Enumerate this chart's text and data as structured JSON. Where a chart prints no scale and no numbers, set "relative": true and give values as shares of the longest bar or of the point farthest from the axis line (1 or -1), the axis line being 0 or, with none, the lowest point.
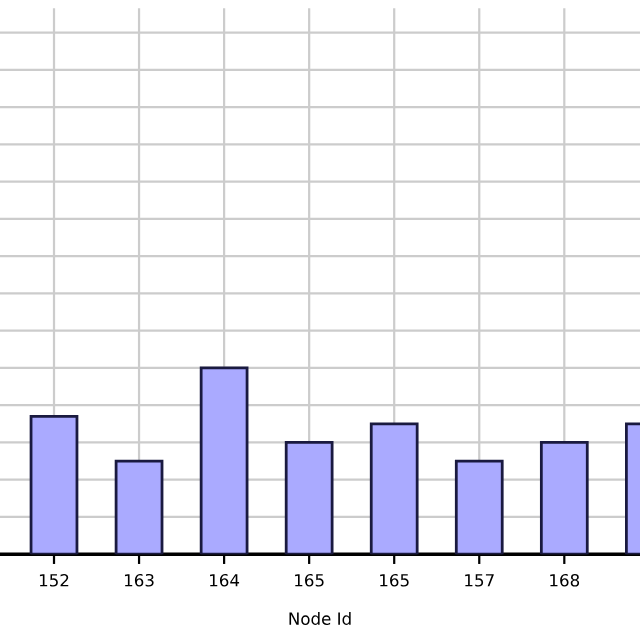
{
  "chart_data": {
    "type": "bar",
    "xlabel": "Node Id",
    "categories": [
      "152",
      "163",
      "164",
      "165",
      "165",
      "157",
      "168",
      null
    ],
    "values": [
      0.74,
      0.5,
      1,
      0.6,
      0.7,
      0.5,
      0.6,
      0.7
    ],
    "color": "#aaaaff",
    "relative": true,
    "grid": true,
    "legend": false
  }
}
